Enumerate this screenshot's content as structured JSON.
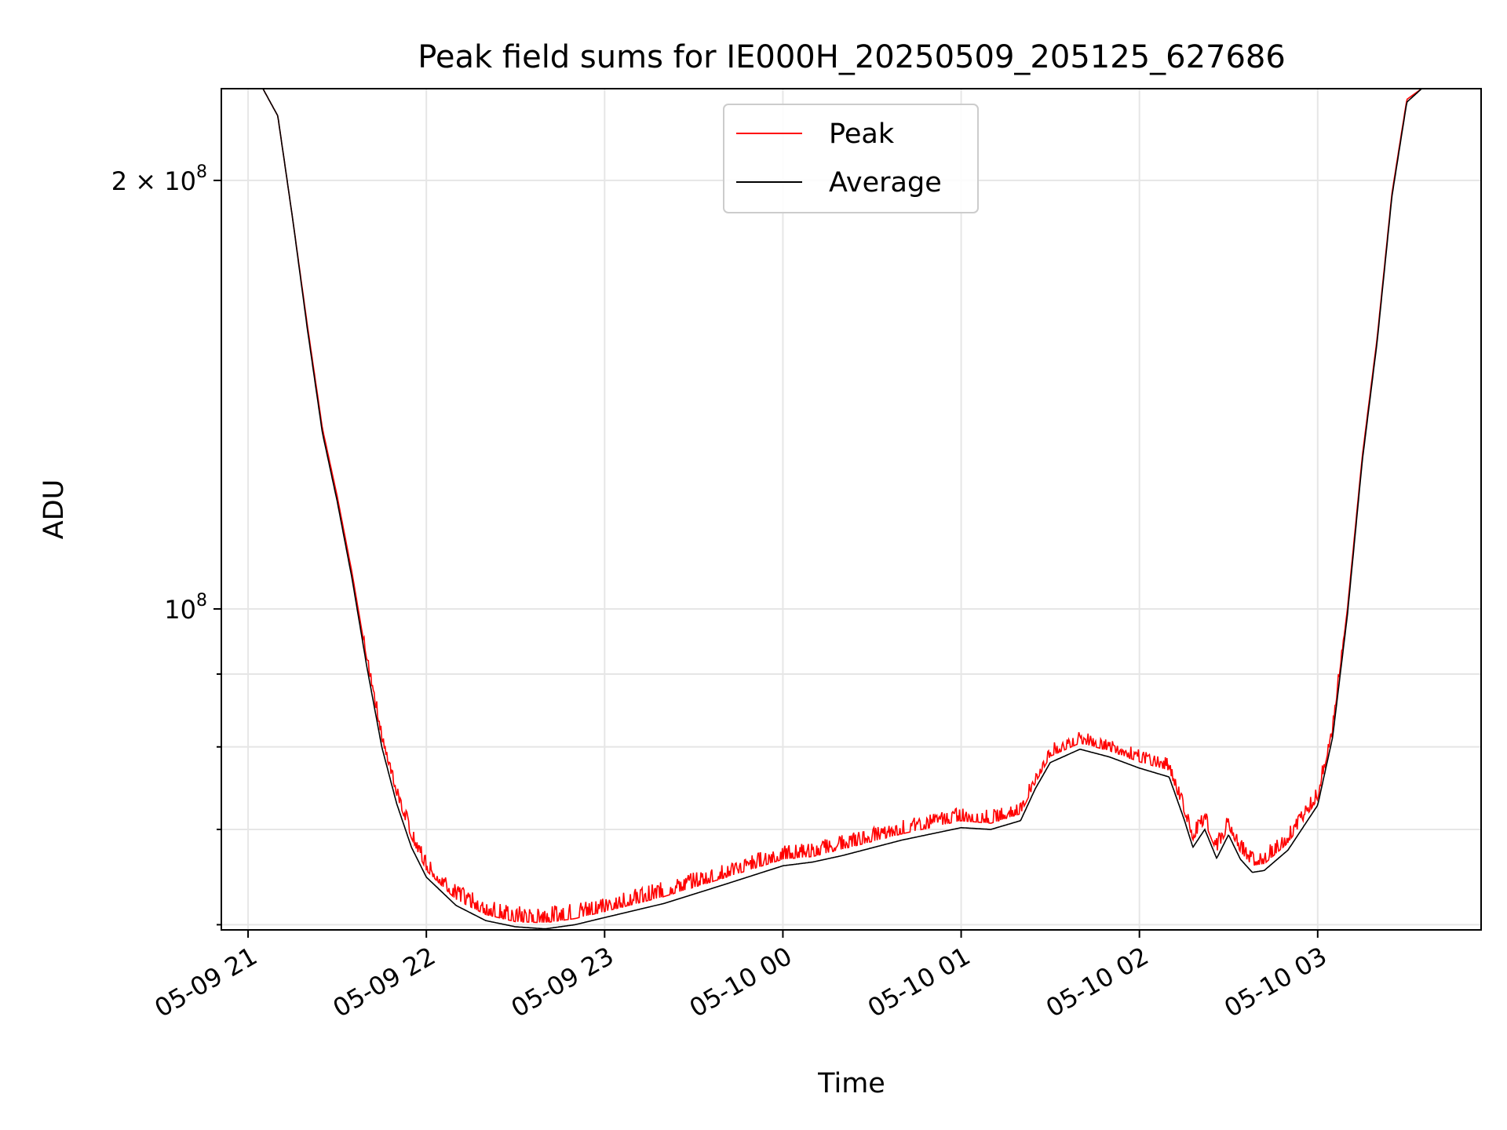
{
  "chart_data": {
    "type": "line",
    "title": "Peak field sums for IE000H_20250509_205125_627686",
    "xlabel": "Time",
    "ylabel": "ADU",
    "yscale": "log",
    "ylim": [
      59500000,
      232000000
    ],
    "xlim": [
      "2025-05-09 20:51",
      "2025-05-10 03:55"
    ],
    "x_ticks": [
      {
        "value": "2025-05-09 21:00",
        "label": "05-09 21"
      },
      {
        "value": "2025-05-09 22:00",
        "label": "05-09 22"
      },
      {
        "value": "2025-05-09 23:00",
        "label": "05-09 23"
      },
      {
        "value": "2025-05-10 00:00",
        "label": "05-10 00"
      },
      {
        "value": "2025-05-10 01:00",
        "label": "05-10 01"
      },
      {
        "value": "2025-05-10 02:00",
        "label": "05-10 02"
      },
      {
        "value": "2025-05-10 03:00",
        "label": "05-10 03"
      }
    ],
    "y_ticks": [
      {
        "value": 100000000,
        "base": "10",
        "exp": "8",
        "mult": ""
      },
      {
        "value": 200000000,
        "base": "10",
        "exp": "8",
        "mult": "2 × "
      }
    ],
    "y_minor_ticks": [
      60000000,
      70000000,
      80000000,
      90000000
    ],
    "grid": true,
    "legend_position": "top-center",
    "series": [
      {
        "name": "Peak",
        "color": "#ff0000",
        "noise": 1200000,
        "x": [
          "2025-05-09 20:51",
          "2025-05-09 21:05",
          "2025-05-09 21:10",
          "2025-05-09 21:15",
          "2025-05-09 21:20",
          "2025-05-09 21:25",
          "2025-05-09 21:30",
          "2025-05-09 21:35",
          "2025-05-09 21:40",
          "2025-05-09 21:45",
          "2025-05-09 21:50",
          "2025-05-09 21:55",
          "2025-05-09 22:00",
          "2025-05-09 22:10",
          "2025-05-09 22:20",
          "2025-05-09 22:30",
          "2025-05-09 22:40",
          "2025-05-09 22:50",
          "2025-05-09 23:00",
          "2025-05-09 23:20",
          "2025-05-09 23:40",
          "2025-05-10 00:00",
          "2025-05-10 00:10",
          "2025-05-10 00:20",
          "2025-05-10 00:40",
          "2025-05-10 01:00",
          "2025-05-10 01:10",
          "2025-05-10 01:20",
          "2025-05-10 01:25",
          "2025-05-10 01:30",
          "2025-05-10 01:40",
          "2025-05-10 01:50",
          "2025-05-10 02:00",
          "2025-05-10 02:10",
          "2025-05-10 02:15",
          "2025-05-10 02:18",
          "2025-05-10 02:22",
          "2025-05-10 02:26",
          "2025-05-10 02:30",
          "2025-05-10 02:34",
          "2025-05-10 02:38",
          "2025-05-10 02:42",
          "2025-05-10 02:50",
          "2025-05-10 03:00",
          "2025-05-10 03:05",
          "2025-05-10 03:10",
          "2025-05-10 03:15",
          "2025-05-10 03:20",
          "2025-05-10 03:25",
          "2025-05-10 03:30",
          "2025-05-10 03:35",
          "2025-05-10 03:55"
        ],
        "y": [
          232000000,
          232000000,
          222000000,
          188000000,
          158000000,
          134000000,
          120000000,
          106000000,
          92000000,
          81000000,
          74000000,
          69000000,
          65500000,
          62500000,
          61000000,
          60300000,
          60200000,
          60600000,
          61300000,
          62800000,
          64700000,
          66700000,
          67000000,
          67800000,
          69500000,
          71000000,
          70700000,
          71800000,
          75500000,
          78800000,
          80500000,
          79500000,
          78100000,
          77000000,
          72000000,
          68800000,
          70800000,
          67500000,
          70200000,
          67500000,
          66000000,
          66200000,
          68500000,
          73500000,
          82000000,
          100000000,
          128000000,
          155000000,
          196000000,
          228000000,
          232000000,
          232000000
        ]
      },
      {
        "name": "Average",
        "color": "#000000",
        "noise": 0,
        "x": [
          "2025-05-09 20:51",
          "2025-05-09 21:05",
          "2025-05-09 21:10",
          "2025-05-09 21:15",
          "2025-05-09 21:20",
          "2025-05-09 21:25",
          "2025-05-09 21:30",
          "2025-05-09 21:35",
          "2025-05-09 21:40",
          "2025-05-09 21:45",
          "2025-05-09 21:50",
          "2025-05-09 21:55",
          "2025-05-09 22:00",
          "2025-05-09 22:10",
          "2025-05-09 22:20",
          "2025-05-09 22:30",
          "2025-05-09 22:40",
          "2025-05-09 22:50",
          "2025-05-09 23:00",
          "2025-05-09 23:20",
          "2025-05-09 23:40",
          "2025-05-10 00:00",
          "2025-05-10 00:10",
          "2025-05-10 00:20",
          "2025-05-10 00:40",
          "2025-05-10 01:00",
          "2025-05-10 01:10",
          "2025-05-10 01:20",
          "2025-05-10 01:25",
          "2025-05-10 01:30",
          "2025-05-10 01:40",
          "2025-05-10 01:50",
          "2025-05-10 02:00",
          "2025-05-10 02:10",
          "2025-05-10 02:15",
          "2025-05-10 02:18",
          "2025-05-10 02:22",
          "2025-05-10 02:26",
          "2025-05-10 02:30",
          "2025-05-10 02:34",
          "2025-05-10 02:38",
          "2025-05-10 02:42",
          "2025-05-10 02:50",
          "2025-05-10 03:00",
          "2025-05-10 03:05",
          "2025-05-10 03:10",
          "2025-05-10 03:15",
          "2025-05-10 03:20",
          "2025-05-10 03:25",
          "2025-05-10 03:30",
          "2025-05-10 03:35",
          "2025-05-10 03:55"
        ],
        "y": [
          232000000,
          232000000,
          222000000,
          188000000,
          157000000,
          133000000,
          119000000,
          105000000,
          91000000,
          80000000,
          73000000,
          68000000,
          64800000,
          61900000,
          60400000,
          59800000,
          59600000,
          60000000,
          60700000,
          62100000,
          64000000,
          66000000,
          66400000,
          67100000,
          68800000,
          70200000,
          70000000,
          71000000,
          74800000,
          78000000,
          79700000,
          78700000,
          77300000,
          76200000,
          71200000,
          68000000,
          70000000,
          66800000,
          69400000,
          66700000,
          65300000,
          65500000,
          67700000,
          72800000,
          81200000,
          99000000,
          127000000,
          154000000,
          195000000,
          227000000,
          232000000,
          232000000
        ]
      }
    ]
  }
}
